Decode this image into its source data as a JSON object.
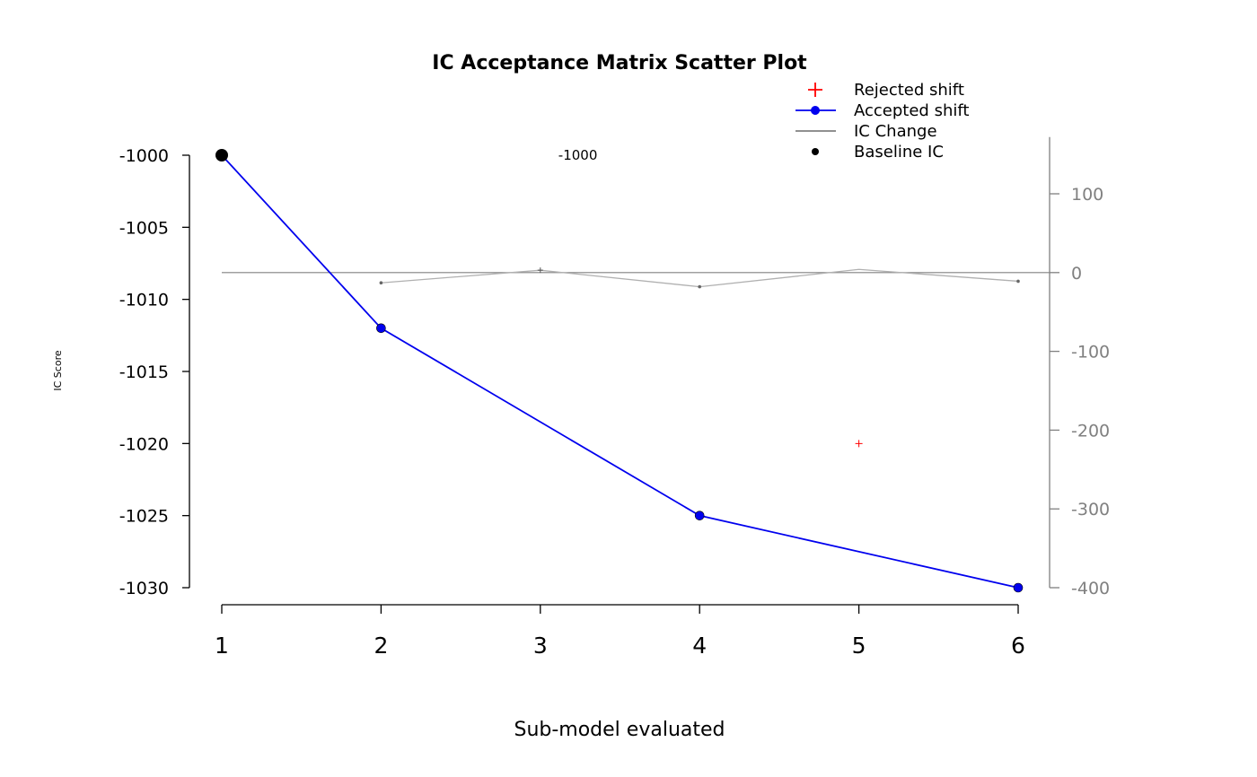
{
  "chart_data": {
    "type": "scatter",
    "title": "IC Acceptance Matrix Scatter Plot",
    "xlabel": "Sub-model evaluated",
    "ylabel": "IC Score",
    "x_ticks": [
      1,
      2,
      3,
      4,
      5,
      6
    ],
    "ylim": [
      -1030,
      -1000
    ],
    "y_ticks": [
      -1000,
      -1005,
      -1010,
      -1015,
      -1020,
      -1025,
      -1030
    ],
    "y2lim": [
      -400,
      172
    ],
    "y2_ticks": [
      100,
      0,
      -100,
      -200,
      -300,
      -400
    ],
    "annotation": {
      "x": 3,
      "y": -1000,
      "text": "-1000"
    },
    "series": [
      {
        "name": "Rejected shift",
        "color": "#ff0000",
        "marker": "plus",
        "axis": "left",
        "points": [
          [
            5,
            -1020
          ]
        ]
      },
      {
        "name": "Accepted shift",
        "color": "#0000ee",
        "marker": "circle",
        "axis": "left",
        "points": [
          [
            1,
            -1000
          ],
          [
            2,
            -1012
          ],
          [
            4,
            -1025
          ],
          [
            6,
            -1030
          ]
        ]
      },
      {
        "name": "IC Change",
        "color": "#808080",
        "marker": "line",
        "axis": "right",
        "points": [
          [
            2,
            -13
          ],
          [
            3,
            3
          ],
          [
            4,
            -18
          ],
          [
            5,
            4
          ],
          [
            6,
            -11
          ]
        ],
        "reference_line": 0
      },
      {
        "name": "Baseline IC",
        "color": "#000000",
        "marker": "dot",
        "axis": "left",
        "points": [
          [
            1,
            -1000
          ]
        ]
      }
    ],
    "legend": {
      "position": "top-right",
      "entries": [
        "Rejected shift",
        "Accepted shift",
        "IC Change",
        "Baseline IC"
      ]
    }
  }
}
